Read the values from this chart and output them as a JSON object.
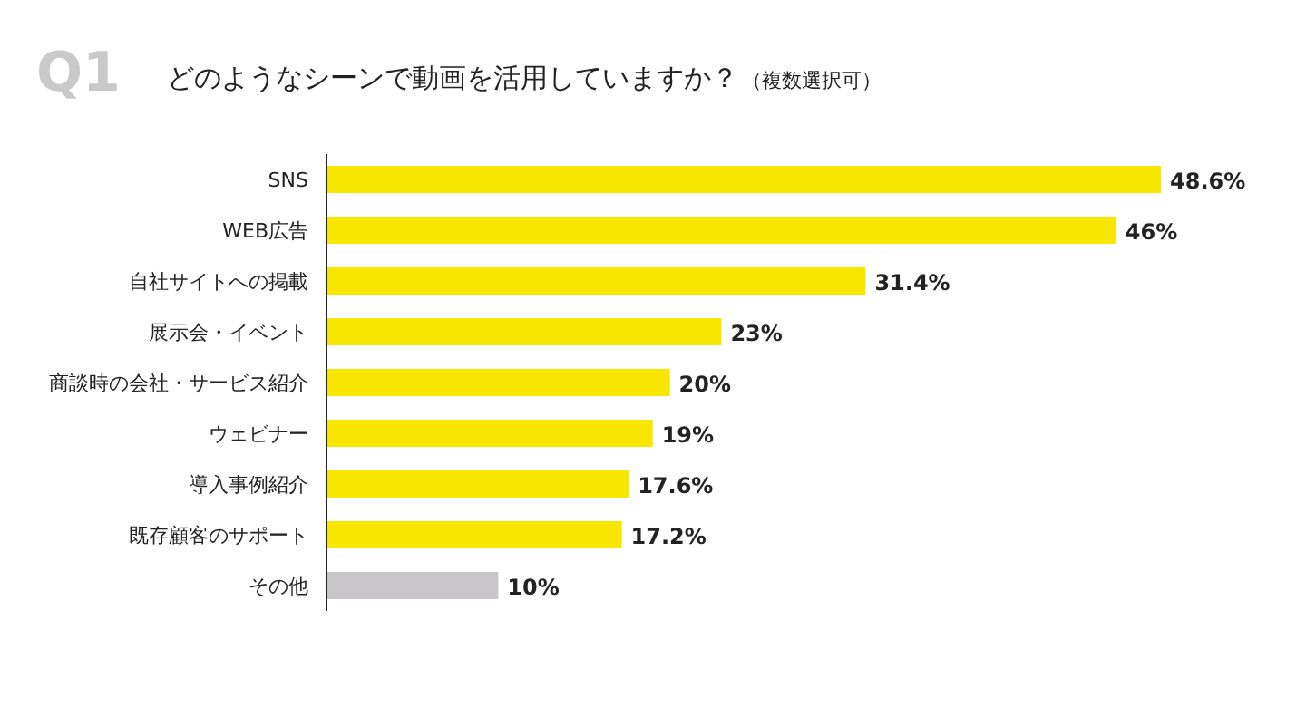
{
  "chart_data": {
    "type": "bar",
    "orientation": "horizontal",
    "title": "Q1",
    "subtitle": "どのようなシーンで動画を活用していますか？",
    "annotations": [
      "（複数選択可）"
    ],
    "categories": [
      "SNS",
      "WEB広告",
      "自社サイトへの掲載",
      "展示会・イベント",
      "商談時の会社・サービス紹介",
      "ウェビナー",
      "導入事例紹介",
      "既存顧客のサポート",
      "その他"
    ],
    "values": [
      48.6,
      46,
      31.4,
      23,
      20,
      19,
      17.6,
      17.2,
      10
    ],
    "colors": [
      "#f7e600",
      "#f7e600",
      "#f7e600",
      "#f7e600",
      "#f7e600",
      "#f7e600",
      "#f7e600",
      "#f7e600",
      "#c8c5c9"
    ],
    "value_labels": [
      "48.6%",
      "46%",
      "31.4%",
      "23%",
      "20%",
      "19%",
      "17.6%",
      "17.2%",
      "10%"
    ]
  }
}
